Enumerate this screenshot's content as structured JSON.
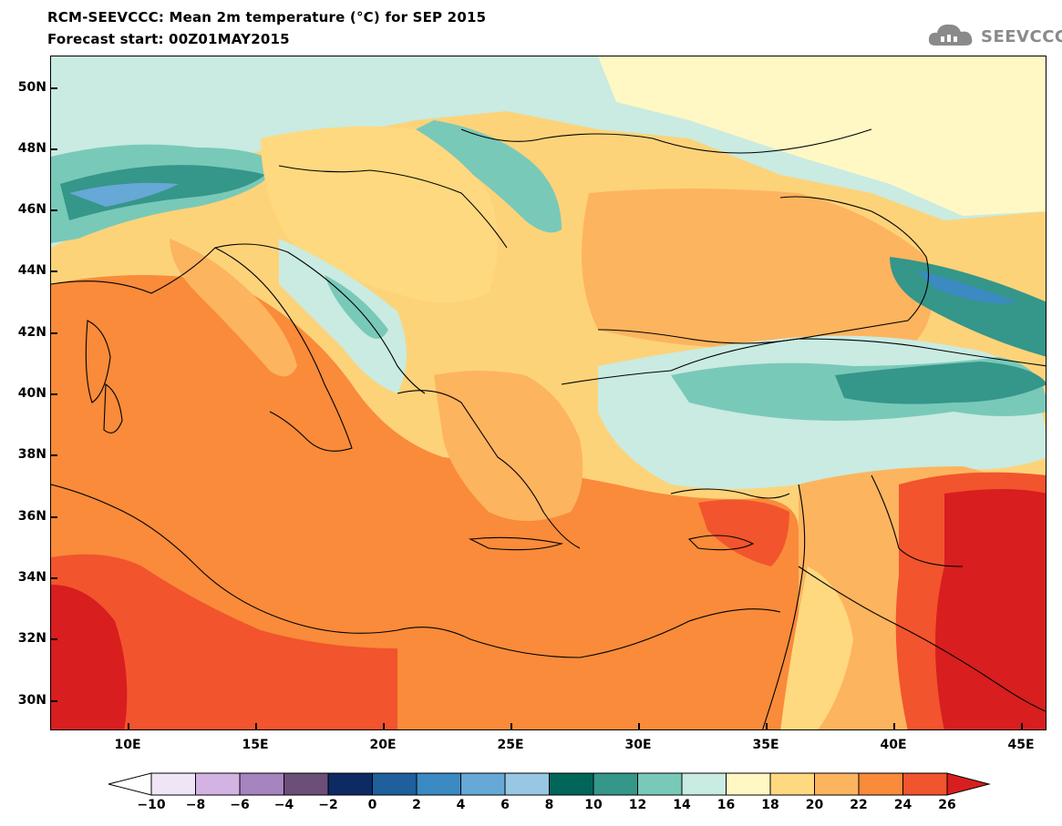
{
  "header": {
    "title_line_1": "RCM-SEEVCCC: Mean 2m temperature (°C) for SEP 2015",
    "title_line_2": "Forecast start: 00Z01MAY2015"
  },
  "logo": {
    "text": "SEEVCCC",
    "icon": "cloud-icon",
    "color": "#8a8a8a"
  },
  "map": {
    "lat_labels": [
      "50N",
      "48N",
      "46N",
      "44N",
      "42N",
      "40N",
      "38N",
      "36N",
      "34N",
      "32N",
      "30N"
    ],
    "lon_labels": [
      "10E",
      "15E",
      "20E",
      "25E",
      "30E",
      "35E",
      "40E",
      "45E"
    ],
    "lat_values": [
      50,
      48,
      46,
      44,
      42,
      40,
      38,
      36,
      34,
      32,
      30
    ],
    "lon_values": [
      10,
      15,
      20,
      25,
      30,
      35,
      40,
      45
    ],
    "extent": {
      "lon_min": 6.3,
      "lon_max": 45.8,
      "lat_min": 29.0,
      "lat_max": 51.0
    }
  },
  "colorbar": {
    "labels": [
      "−10",
      "−8",
      "−6",
      "−4",
      "−2",
      "0",
      "2",
      "4",
      "6",
      "8",
      "10",
      "12",
      "14",
      "16",
      "18",
      "20",
      "22",
      "24",
      "26"
    ],
    "colors": [
      "#ffffff",
      "#f0e5f7",
      "#d3b3e3",
      "#a684bf",
      "#6c4f79",
      "#0d2a63",
      "#1e5f9c",
      "#3b8ac2",
      "#66a8d6",
      "#98c7e3",
      "#00665a",
      "#35968a",
      "#79c9b8",
      "#c9ebe1",
      "#fff8c4",
      "#ffd97f",
      "#fdb45f",
      "#f98b3a",
      "#f2542d",
      "#d81e1e"
    ]
  },
  "legend_units": "°C"
}
